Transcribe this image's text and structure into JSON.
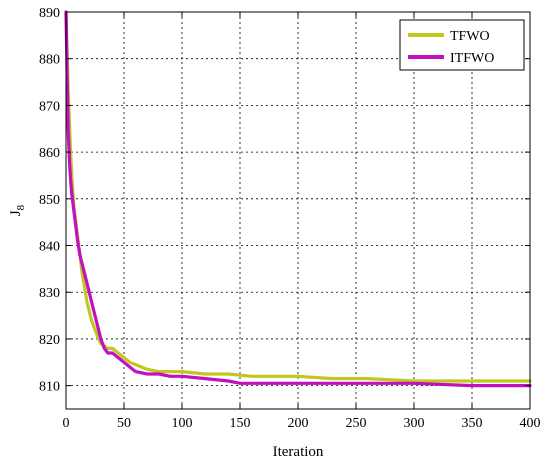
{
  "chart_data": {
    "type": "line",
    "title": "",
    "xlabel": "Iteration",
    "ylabel_main": "J",
    "ylabel_sub": "8",
    "xlim": [
      0,
      400
    ],
    "ylim": [
      805,
      890
    ],
    "xticks": [
      0,
      50,
      100,
      150,
      200,
      250,
      300,
      350,
      400
    ],
    "yticks": [
      810,
      820,
      830,
      840,
      850,
      860,
      870,
      880,
      890
    ],
    "grid": true,
    "legend_position": "top-right",
    "series": [
      {
        "name": "TFWO",
        "color": "#c0c81e",
        "x": [
          0,
          2,
          3,
          4,
          5,
          6,
          7,
          8,
          10,
          12,
          14,
          16,
          18,
          20,
          22,
          25,
          28,
          30,
          33,
          36,
          40,
          45,
          50,
          55,
          60,
          65,
          70,
          80,
          90,
          100,
          120,
          140,
          160,
          180,
          200,
          230,
          260,
          300,
          350,
          400
        ],
        "y": [
          890,
          872,
          866,
          860,
          855,
          851,
          848,
          846,
          842,
          838,
          834,
          831,
          828,
          826,
          824,
          822,
          820,
          819,
          818.5,
          818,
          818,
          817,
          816,
          815,
          814.5,
          814,
          813.5,
          813,
          813,
          813,
          812.5,
          812.5,
          812,
          812,
          812,
          811.5,
          811.5,
          811,
          811,
          811
        ]
      },
      {
        "name": "ITFWO",
        "color": "#c010c0",
        "x": [
          0,
          1,
          2,
          3,
          4,
          5,
          6,
          7,
          8,
          10,
          12,
          14,
          16,
          18,
          20,
          22,
          25,
          28,
          30,
          33,
          36,
          40,
          45,
          50,
          55,
          60,
          70,
          80,
          90,
          100,
          120,
          140,
          150,
          170,
          200,
          250,
          300,
          350,
          400
        ],
        "y": [
          890,
          876,
          864,
          858,
          854,
          851,
          849,
          847,
          845,
          841,
          838,
          836,
          834,
          832,
          830,
          828,
          825,
          822,
          820,
          818,
          817,
          817,
          816,
          815,
          814,
          813,
          812.5,
          812.5,
          812,
          812,
          811.5,
          811,
          810.5,
          810.5,
          810.5,
          810.5,
          810.5,
          810,
          810
        ]
      }
    ]
  }
}
